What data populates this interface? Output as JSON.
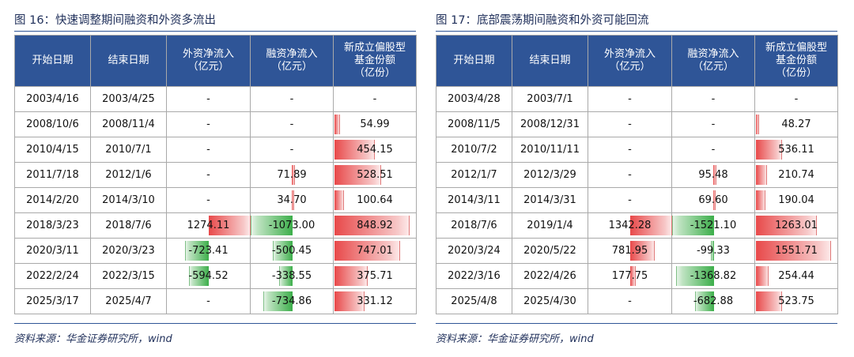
{
  "tables": [
    {
      "title": "图 16：快速调整期间融资和外资多流出",
      "source": "资料来源：华金证券研究所，wind",
      "headers": [
        "开始日期",
        "结束日期",
        "外资净流入\n（亿元）",
        "融资净流入\n（亿元）",
        "新成立偏股型\n基金份额\n（亿份）"
      ],
      "rows": [
        {
          "start": "2003/4/16",
          "end": "2003/4/25",
          "foreign": "-",
          "margin": "-",
          "fund": "-"
        },
        {
          "start": "2008/10/6",
          "end": "2008/11/4",
          "foreign": "-",
          "margin": "-",
          "fund": "54.99"
        },
        {
          "start": "2010/4/15",
          "end": "2010/7/1",
          "foreign": "-",
          "margin": "-",
          "fund": "454.15"
        },
        {
          "start": "2011/7/18",
          "end": "2012/1/6",
          "foreign": "-",
          "margin": "71.89",
          "fund": "528.51"
        },
        {
          "start": "2014/2/20",
          "end": "2014/3/10",
          "foreign": "-",
          "margin": "34.70",
          "fund": "100.64"
        },
        {
          "start": "2018/3/23",
          "end": "2018/7/6",
          "foreign": "1274.11",
          "margin": "-1073.00",
          "fund": "848.92"
        },
        {
          "start": "2020/3/11",
          "end": "2020/3/23",
          "foreign": "-723.41",
          "margin": "-500.45",
          "fund": "747.01"
        },
        {
          "start": "2022/2/24",
          "end": "2022/3/15",
          "foreign": "-594.52",
          "margin": "-338.55",
          "fund": "375.71"
        },
        {
          "start": "2025/3/17",
          "end": "2025/4/7",
          "foreign": "-",
          "margin": "-734.86",
          "fund": "331.12"
        }
      ]
    },
    {
      "title": "图 17：底部震荡期间融资和外资可能回流",
      "source": "资料来源：华金证券研究所，wind",
      "headers": [
        "开始日期",
        "结束日期",
        "外资净流入\n（亿元）",
        "融资净流入\n（亿元）",
        "新成立偏股型\n基金份额\n（亿份）"
      ],
      "rows": [
        {
          "start": "2003/4/28",
          "end": "2003/7/1",
          "foreign": "-",
          "margin": "-",
          "fund": "-"
        },
        {
          "start": "2008/11/5",
          "end": "2008/12/31",
          "foreign": "-",
          "margin": "-",
          "fund": "48.27"
        },
        {
          "start": "2010/7/2",
          "end": "2010/11/11",
          "foreign": "-",
          "margin": "-",
          "fund": "536.11"
        },
        {
          "start": "2012/1/7",
          "end": "2012/3/29",
          "foreign": "-",
          "margin": "95.48",
          "fund": "210.74"
        },
        {
          "start": "2014/3/11",
          "end": "2014/3/31",
          "foreign": "-",
          "margin": "69.60",
          "fund": "190.04"
        },
        {
          "start": "2018/7/6",
          "end": "2019/1/4",
          "foreign": "1342.28",
          "margin": "-1521.10",
          "fund": "1263.01"
        },
        {
          "start": "2020/3/24",
          "end": "2020/5/22",
          "foreign": "781.95",
          "margin": "-99.33",
          "fund": "1551.71"
        },
        {
          "start": "2022/3/16",
          "end": "2022/4/26",
          "foreign": "177.75",
          "margin": "-1368.82",
          "fund": "254.44"
        },
        {
          "start": "2025/4/8",
          "end": "2025/4/30",
          "foreign": "-",
          "margin": "-682.88",
          "fund": "523.75"
        }
      ]
    }
  ]
}
